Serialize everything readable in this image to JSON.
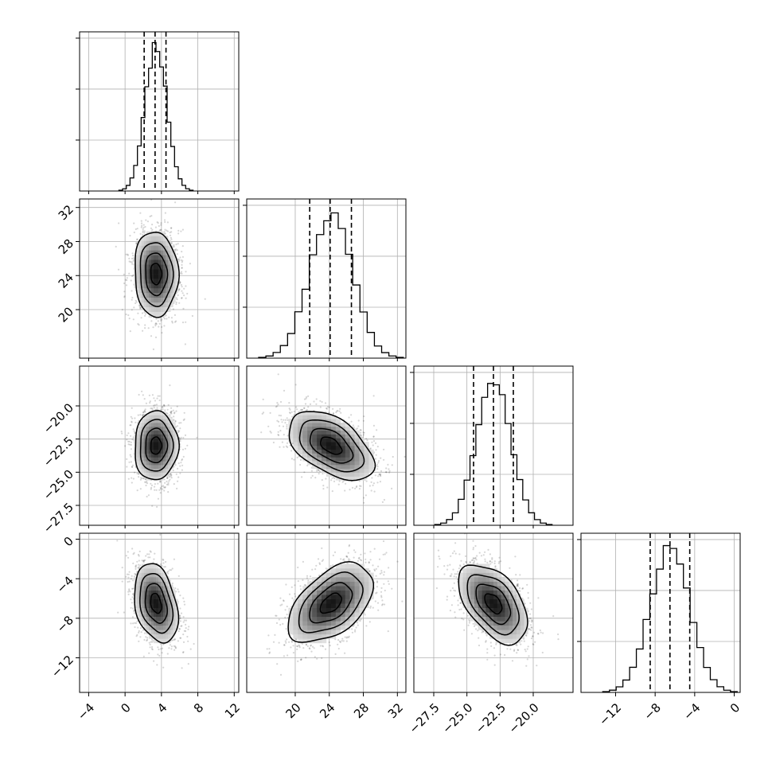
{
  "chart_data": {
    "type": "corner",
    "grid": true,
    "variables": [
      {
        "name": "",
        "range": [
          -5,
          12.5
        ],
        "ticks": [
          -4,
          0,
          4,
          8,
          12
        ],
        "tick_labels": [
          "−4",
          "0",
          "4",
          "8",
          "12"
        ],
        "mean": 3.4,
        "sd": 1.2,
        "quantiles": [
          2.1,
          3.3,
          4.5
        ]
      },
      {
        "name": "",
        "range": [
          14.3,
          33
        ],
        "ticks": [
          20,
          24,
          28,
          32
        ],
        "tick_labels": [
          "20",
          "24",
          "28",
          "32"
        ],
        "mean": 24.2,
        "sd": 2.5,
        "quantiles": [
          21.7,
          24.1,
          26.6
        ]
      },
      {
        "name": "",
        "range": [
          -29.0,
          -17.0
        ],
        "ticks": [
          -27.5,
          -25.0,
          -22.5,
          -20.0
        ],
        "tick_labels": [
          "−27.5",
          "−25.0",
          "−22.5",
          "−20.0"
        ],
        "mean": -23.0,
        "sd": 1.3,
        "quantiles": [
          -24.5,
          -23.0,
          -21.5
        ]
      },
      {
        "name": "",
        "range": [
          -15.5,
          0.6
        ],
        "ticks": [
          -12,
          -8,
          -4,
          0
        ],
        "tick_labels": [
          "−12",
          "−8",
          "−4",
          "0"
        ],
        "mean": -6.5,
        "sd": 2.0,
        "quantiles": [
          -8.5,
          -6.5,
          -4.5
        ]
      }
    ],
    "correlations": [
      {
        "pair": [
          0,
          1
        ],
        "rho": -0.05
      },
      {
        "pair": [
          0,
          2
        ],
        "rho": 0.03
      },
      {
        "pair": [
          1,
          2
        ],
        "rho": -0.5
      },
      {
        "pair": [
          0,
          3
        ],
        "rho": -0.3
      },
      {
        "pair": [
          1,
          3
        ],
        "rho": 0.5
      },
      {
        "pair": [
          2,
          3
        ],
        "rho": -0.5
      }
    ],
    "contour_levels_sigma": [
      0.5,
      1.0,
      1.5,
      2.0
    ]
  },
  "icons": {
    "quantile_line": "dashed-line",
    "contour": "solid-line"
  }
}
